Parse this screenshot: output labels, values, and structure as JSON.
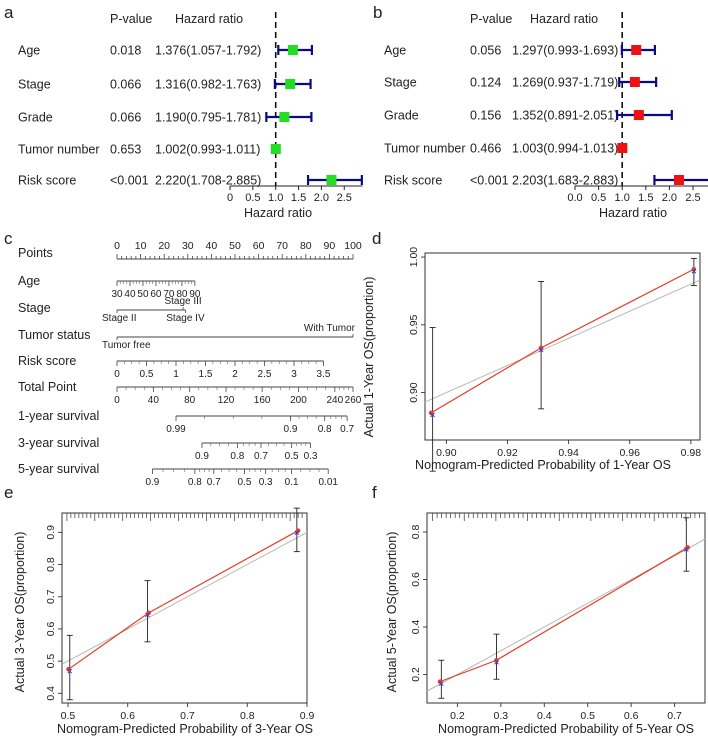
{
  "panels": {
    "a": {
      "label": "a",
      "col_pvalue": "P-value",
      "col_hr": "Hazard ratio",
      "axis_label": "Hazard ratio",
      "ticks": [
        {
          "v": 0,
          "t": "0"
        },
        {
          "v": 0.5,
          "t": "0.5"
        },
        {
          "v": 1,
          "t": "1.0"
        },
        {
          "v": 1.5,
          "t": "1.5"
        },
        {
          "v": 2,
          "t": "2.0"
        },
        {
          "v": 2.5,
          "t": "2.5"
        }
      ],
      "rows": [
        {
          "name": "Age",
          "p": "0.018",
          "hr_text": "1.376(1.057-1.792)",
          "hr": 1.376,
          "lo": 1.057,
          "hi": 1.792
        },
        {
          "name": "Stage",
          "p": "0.066",
          "hr_text": "1.316(0.982-1.763)",
          "hr": 1.316,
          "lo": 0.982,
          "hi": 1.763
        },
        {
          "name": "Grade",
          "p": "0.066",
          "hr_text": "1.190(0.795-1.781)",
          "hr": 1.19,
          "lo": 0.795,
          "hi": 1.781
        },
        {
          "name": "Tumor number",
          "p": "0.653",
          "hr_text": "1.002(0.993-1.011)",
          "hr": 1.002,
          "lo": 0.993,
          "hi": 1.011
        },
        {
          "name": "Risk score",
          "p": "<0.001",
          "hr_text": "2.220(1.708-2.885)",
          "hr": 2.22,
          "lo": 1.708,
          "hi": 2.885
        }
      ]
    },
    "b": {
      "label": "b",
      "col_pvalue": "P-value",
      "col_hr": "Hazard ratio",
      "axis_label": "Hazard ratio",
      "ticks": [
        {
          "v": 0,
          "t": "0.0"
        },
        {
          "v": 0.5,
          "t": "0.5"
        },
        {
          "v": 1,
          "t": "1.0"
        },
        {
          "v": 1.5,
          "t": "1.5"
        },
        {
          "v": 2,
          "t": "2.0"
        },
        {
          "v": 2.5,
          "t": "2.5"
        }
      ],
      "rows": [
        {
          "name": "Age",
          "p": "0.056",
          "hr_text": "1.297(0.993-1.693)",
          "hr": 1.297,
          "lo": 0.993,
          "hi": 1.693
        },
        {
          "name": "Stage",
          "p": "0.124",
          "hr_text": "1.269(0.937-1.719)",
          "hr": 1.269,
          "lo": 0.937,
          "hi": 1.719
        },
        {
          "name": "Grade",
          "p": "0.156",
          "hr_text": "1.352(0.891-2.051)",
          "hr": 1.352,
          "lo": 0.891,
          "hi": 2.051
        },
        {
          "name": "Tumor number",
          "p": "0.466",
          "hr_text": "1.003(0.994-1.013)",
          "hr": 1.003,
          "lo": 0.994,
          "hi": 1.013
        },
        {
          "name": "Risk score",
          "p": "<0.001",
          "hr_text": "2.203(1.683-2.883)",
          "hr": 2.203,
          "lo": 1.683,
          "hi": 2.883
        }
      ]
    },
    "c": {
      "label": "c",
      "rows": [
        {
          "name": "Points",
          "min": 0,
          "max": 100,
          "ticks": [
            {
              "v": 0,
              "t": "0"
            },
            {
              "v": 10,
              "t": "10"
            },
            {
              "v": 20,
              "t": "20"
            },
            {
              "v": 30,
              "t": "30"
            },
            {
              "v": 40,
              "t": "40"
            },
            {
              "v": 50,
              "t": "50"
            },
            {
              "v": 60,
              "t": "60"
            },
            {
              "v": 70,
              "t": "70"
            },
            {
              "v": 80,
              "t": "80"
            },
            {
              "v": 90,
              "t": "90"
            },
            {
              "v": 100,
              "t": "100"
            }
          ]
        },
        {
          "name": "Age",
          "min": 0,
          "max": 100,
          "ticks": [
            {
              "v": 0,
              "t": "30"
            },
            {
              "v": 5.5,
              "t": "40"
            },
            {
              "v": 11,
              "t": "50"
            },
            {
              "v": 16.5,
              "t": "60"
            },
            {
              "v": 22,
              "t": "70"
            },
            {
              "v": 27.5,
              "t": "80"
            },
            {
              "v": 33,
              "t": "90"
            }
          ]
        },
        {
          "name": "Stage",
          "segments": [
            {
              "a": 0,
              "b": 29
            }
          ],
          "labels": [
            {
              "v": 0,
              "t": "Stage II",
              "pos": "below"
            },
            {
              "v": 28,
              "t": "Stage III",
              "pos": "above"
            },
            {
              "v": 29,
              "t": "Stage IV",
              "pos": "below"
            }
          ]
        },
        {
          "name": "Tumor status",
          "segments": [
            {
              "a": 0,
              "b": 100
            }
          ],
          "labels": [
            {
              "v": 0,
              "t": "Tumor free",
              "pos": "below"
            },
            {
              "v": 100,
              "t": "With Tumor",
              "pos": "above"
            }
          ]
        },
        {
          "name": "Risk score",
          "ticks": [
            {
              "v": 0,
              "t": "0"
            },
            {
              "v": 12.5,
              "t": "0.5"
            },
            {
              "v": 25,
              "t": "1"
            },
            {
              "v": 37.5,
              "t": "1.5"
            },
            {
              "v": 50,
              "t": "2"
            },
            {
              "v": 62.5,
              "t": "2.5"
            },
            {
              "v": 75,
              "t": "3"
            },
            {
              "v": 87.5,
              "t": "3.5"
            }
          ]
        },
        {
          "name": "Total Point",
          "ticks": [
            {
              "v": 0,
              "t": "0"
            },
            {
              "v": 15.4,
              "t": "40"
            },
            {
              "v": 30.8,
              "t": "80"
            },
            {
              "v": 46.2,
              "t": "120"
            },
            {
              "v": 61.5,
              "t": "160"
            },
            {
              "v": 76.9,
              "t": "200"
            },
            {
              "v": 92.3,
              "t": "240"
            },
            {
              "v": 100,
              "t": "260"
            }
          ]
        },
        {
          "name": "1-year  survival",
          "ticks": [
            {
              "v": 25,
              "t": "0.99"
            },
            {
              "v": 73.5,
              "t": "0.9"
            },
            {
              "v": 88,
              "t": "0.8"
            },
            {
              "v": 97.5,
              "t": "0.7"
            }
          ]
        },
        {
          "name": "3-year  survival",
          "ticks": [
            {
              "v": 36,
              "t": "0.9"
            },
            {
              "v": 51,
              "t": "0.8"
            },
            {
              "v": 61,
              "t": "0.7"
            },
            {
              "v": 74,
              "t": "0.5"
            },
            {
              "v": 82,
              "t": "0.3"
            }
          ]
        },
        {
          "name": "5-year  survival",
          "ticks": [
            {
              "v": 15,
              "t": "0.9"
            },
            {
              "v": 33,
              "t": "0.8"
            },
            {
              "v": 41,
              "t": "0.7"
            },
            {
              "v": 54,
              "t": "0.5"
            },
            {
              "v": 63,
              "t": "0.3"
            },
            {
              "v": 74,
              "t": "0.1"
            },
            {
              "v": 89.5,
              "t": "0.01"
            }
          ]
        }
      ]
    },
    "d": {
      "label": "d",
      "xlabel": "Nomogram-Predicted Probability of  1-Year OS",
      "ylabel": "Actual 1-Year OS(proportion)",
      "xlim": [
        0.893,
        0.983
      ],
      "ylim": [
        0.865,
        1.003
      ],
      "xticks": [
        {
          "v": 0.9,
          "t": "0.90"
        },
        {
          "v": 0.92,
          "t": "0.92"
        },
        {
          "v": 0.94,
          "t": "0.94"
        },
        {
          "v": 0.96,
          "t": "0.96"
        },
        {
          "v": 0.98,
          "t": "0.98"
        }
      ],
      "yticks": [
        {
          "v": 0.9,
          "t": "0.90"
        },
        {
          "v": 0.95,
          "t": "0.95"
        },
        {
          "v": 1.0,
          "t": "1.00"
        }
      ],
      "points": [
        {
          "x": 0.895,
          "y": 0.885,
          "lo": 0.842,
          "hi": 0.948,
          "xb": 0.8955
        },
        {
          "x": 0.931,
          "y": 0.933,
          "lo": 0.888,
          "hi": 0.982,
          "xb": 0.931
        },
        {
          "x": 0.981,
          "y": 0.991,
          "lo": 0.979,
          "hi": 0.999,
          "xb": 0.981
        }
      ],
      "rug": false
    },
    "e": {
      "label": "e",
      "xlabel": "Nomogram-Predicted Probability of  3-Year OS",
      "ylabel": "Actual 3-Year OS(proportion)",
      "xlim": [
        0.49,
        0.9
      ],
      "ylim": [
        0.37,
        0.96
      ],
      "xticks": [
        {
          "v": 0.5,
          "t": "0.5"
        },
        {
          "v": 0.6,
          "t": "0.6"
        },
        {
          "v": 0.7,
          "t": "0.7"
        },
        {
          "v": 0.8,
          "t": "0.8"
        },
        {
          "v": 0.9,
          "t": "0.9"
        }
      ],
      "yticks": [
        {
          "v": 0.4,
          "t": "0.4"
        },
        {
          "v": 0.5,
          "t": "0.5"
        },
        {
          "v": 0.6,
          "t": "0.6"
        },
        {
          "v": 0.7,
          "t": "0.7"
        },
        {
          "v": 0.8,
          "t": "0.8"
        },
        {
          "v": 0.9,
          "t": "0.9"
        }
      ],
      "points": [
        {
          "x": 0.501,
          "y": 0.475,
          "lo": 0.38,
          "hi": 0.58,
          "xb": 0.503
        },
        {
          "x": 0.635,
          "y": 0.65,
          "lo": 0.56,
          "hi": 0.75,
          "xb": 0.633
        },
        {
          "x": 0.885,
          "y": 0.905,
          "lo": 0.84,
          "hi": 0.975,
          "xb": 0.883
        }
      ],
      "rug": true
    },
    "f": {
      "label": "f",
      "xlabel": "Nomogram-Predicted Probability of  5-Year OS",
      "ylabel": "Actual 5-Year OS(proportion)",
      "xlim": [
        0.13,
        0.77
      ],
      "ylim": [
        0.08,
        0.88
      ],
      "xticks": [
        {
          "v": 0.2,
          "t": "0.2"
        },
        {
          "v": 0.3,
          "t": "0.3"
        },
        {
          "v": 0.4,
          "t": "0.4"
        },
        {
          "v": 0.5,
          "t": "0.5"
        },
        {
          "v": 0.6,
          "t": "0.6"
        },
        {
          "v": 0.7,
          "t": "0.7"
        }
      ],
      "yticks": [
        {
          "v": 0.2,
          "t": "0.2"
        },
        {
          "v": 0.4,
          "t": "0.4"
        },
        {
          "v": 0.6,
          "t": "0.6"
        },
        {
          "v": 0.8,
          "t": "0.8"
        }
      ],
      "points": [
        {
          "x": 0.16,
          "y": 0.17,
          "lo": 0.1,
          "hi": 0.26,
          "xb": 0.163
        },
        {
          "x": 0.29,
          "y": 0.26,
          "lo": 0.18,
          "hi": 0.37,
          "xb": 0.29
        },
        {
          "x": 0.73,
          "y": 0.735,
          "lo": 0.635,
          "hi": 0.86,
          "xb": 0.727
        }
      ],
      "rug": true
    }
  },
  "colors": {
    "forest_a_box": "#22dd22",
    "forest_b_box": "#ee1111",
    "ci_line": "#0a0a88",
    "calib_line": "#e83a25",
    "ideal_line": "#b8b8b8",
    "error_bar": "#222222",
    "cross": "#3b3bd8"
  },
  "chart_data": [
    {
      "type": "forest",
      "title": "a",
      "xlabel": "Hazard ratio",
      "xlim": [
        0,
        2.9
      ],
      "categories": [
        "Age",
        "Stage",
        "Grade",
        "Tumor number",
        "Risk score"
      ],
      "values": [
        1.376,
        1.316,
        1.19,
        1.002,
        2.22
      ],
      "lower": [
        1.057,
        0.982,
        0.795,
        0.993,
        1.708
      ],
      "upper": [
        1.792,
        1.763,
        1.781,
        1.011,
        2.885
      ],
      "p_values": [
        "0.018",
        "0.066",
        "0.066",
        "0.653",
        "<0.001"
      ]
    },
    {
      "type": "forest",
      "title": "b",
      "xlabel": "Hazard ratio",
      "xlim": [
        0,
        2.9
      ],
      "categories": [
        "Age",
        "Stage",
        "Grade",
        "Tumor number",
        "Risk score"
      ],
      "values": [
        1.297,
        1.269,
        1.352,
        1.003,
        2.203
      ],
      "lower": [
        0.993,
        0.937,
        0.891,
        0.994,
        1.683
      ],
      "upper": [
        1.693,
        1.719,
        2.051,
        1.013,
        2.883
      ],
      "p_values": [
        "0.056",
        "0.124",
        "0.156",
        "0.466",
        "<0.001"
      ]
    },
    {
      "type": "line",
      "title": "d",
      "xlabel": "Nomogram-Predicted Probability of  1-Year OS",
      "ylabel": "Actual 1-Year OS(proportion)",
      "x": [
        0.895,
        0.931,
        0.981
      ],
      "y": [
        0.885,
        0.933,
        0.991
      ]
    },
    {
      "type": "line",
      "title": "e",
      "xlabel": "Nomogram-Predicted Probability of  3-Year OS",
      "ylabel": "Actual 3-Year OS(proportion)",
      "x": [
        0.501,
        0.635,
        0.885
      ],
      "y": [
        0.475,
        0.65,
        0.905
      ]
    },
    {
      "type": "line",
      "title": "f",
      "xlabel": "Nomogram-Predicted Probability of  5-Year OS",
      "ylabel": "Actual 5-Year OS(proportion)",
      "x": [
        0.16,
        0.29,
        0.73
      ],
      "y": [
        0.17,
        0.26,
        0.735
      ]
    }
  ]
}
